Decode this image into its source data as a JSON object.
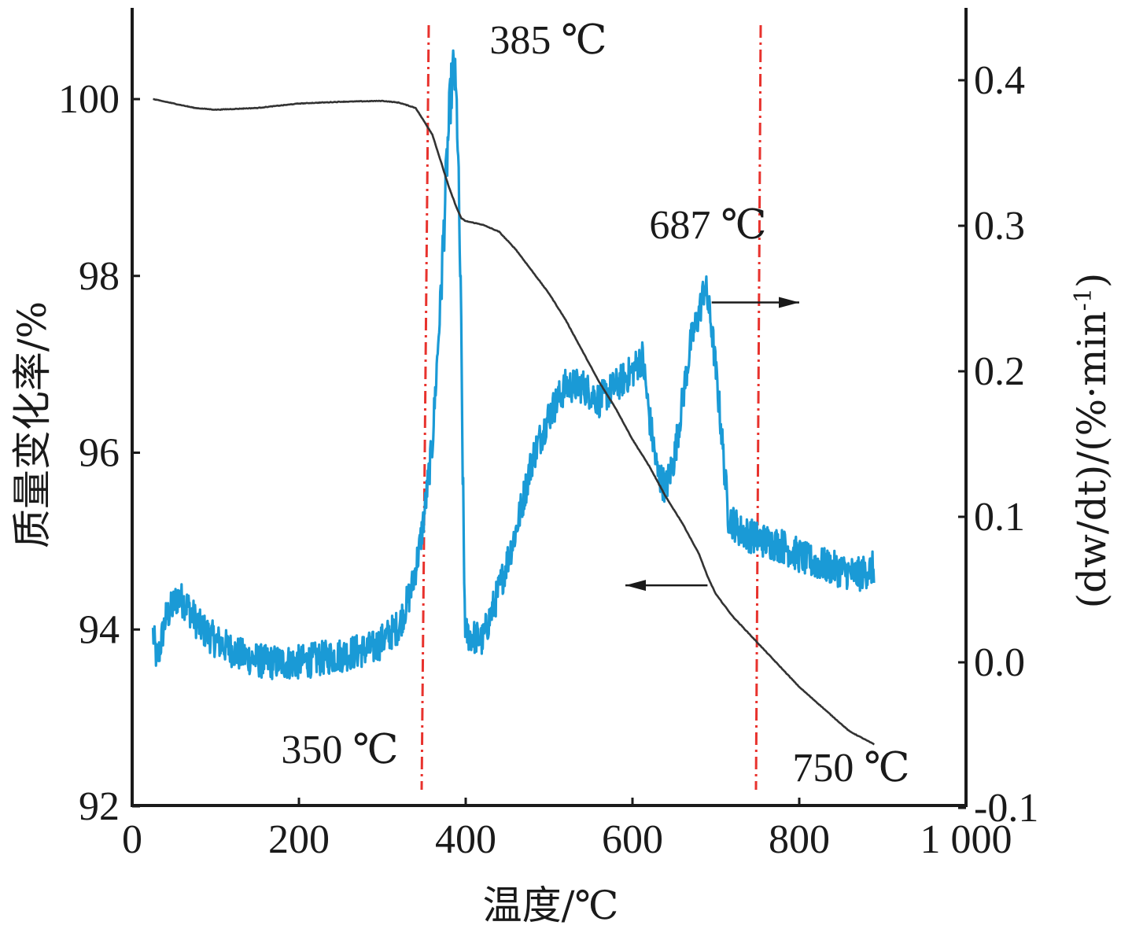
{
  "chart_data": {
    "type": "line",
    "xlabel": "温度/℃",
    "ylabel_left": "质量变化率/%",
    "ylabel_right": "(dw/dt)/(%·min",
    "ylabel_right_sup": "-1",
    "ylabel_right_close": ")",
    "xlim": [
      0,
      1000
    ],
    "ylim_left": [
      92,
      101
    ],
    "ylim_right": [
      -0.1,
      0.45
    ],
    "x_ticks": [
      0,
      200,
      400,
      600,
      800,
      1000
    ],
    "x_tick_labels": [
      "0",
      "200",
      "400",
      "600",
      "800",
      "1 000"
    ],
    "y_left_ticks": [
      92,
      94,
      96,
      98,
      100
    ],
    "y_left_tick_labels": [
      "92",
      "94",
      "96",
      "98",
      "100"
    ],
    "y_right_ticks": [
      -0.1,
      0.0,
      0.1,
      0.2,
      0.3,
      0.4
    ],
    "y_right_tick_labels": [
      "-0.1",
      "0.0",
      "0.1",
      "0.2",
      "0.3",
      "0.4"
    ],
    "grid": false,
    "colors": {
      "tg": "#333333",
      "dtg": "#1a9ad6",
      "markers": "#e8322d",
      "axes": "#1a1a1a"
    },
    "vertical_markers": [
      {
        "x": 350,
        "label": "350 ℃"
      },
      {
        "x": 750,
        "label": "750 ℃"
      }
    ],
    "peak_annotations": [
      {
        "x": 385,
        "label": "385 ℃"
      },
      {
        "x": 687,
        "label": "687 ℃"
      }
    ],
    "series": [
      {
        "axis": "left",
        "x": [
          25,
          50,
          75,
          100,
          150,
          200,
          250,
          300,
          320,
          340,
          360,
          370,
          380,
          390,
          395,
          400,
          420,
          440,
          460,
          480,
          500,
          520,
          540,
          560,
          580,
          600,
          620,
          640,
          660,
          680,
          690,
          700,
          720,
          750,
          780,
          800,
          830,
          860,
          890
        ],
        "values": [
          100.0,
          99.95,
          99.9,
          99.88,
          99.9,
          99.95,
          99.97,
          99.98,
          99.96,
          99.9,
          99.6,
          99.3,
          99.0,
          98.75,
          98.65,
          98.62,
          98.58,
          98.5,
          98.3,
          98.05,
          97.8,
          97.5,
          97.15,
          96.8,
          96.5,
          96.15,
          95.85,
          95.5,
          95.2,
          94.85,
          94.6,
          94.4,
          94.15,
          93.85,
          93.55,
          93.35,
          93.1,
          92.85,
          92.7
        ]
      },
      {
        "axis": "right",
        "x": [
          25,
          30,
          40,
          55,
          65,
          80,
          100,
          130,
          160,
          200,
          250,
          290,
          320,
          335,
          345,
          350,
          360,
          370,
          378,
          382,
          386,
          390,
          394,
          398,
          400,
          420,
          440,
          460,
          480,
          500,
          520,
          540,
          560,
          580,
          600,
          612,
          620,
          630,
          640,
          650,
          660,
          670,
          680,
          687,
          695,
          705,
          715,
          730,
          750,
          780,
          810,
          840,
          870,
          890
        ],
        "values": [
          0.02,
          0.0,
          0.03,
          0.045,
          0.04,
          0.025,
          0.015,
          0.005,
          0.0,
          0.0,
          0.005,
          0.01,
          0.025,
          0.05,
          0.08,
          0.1,
          0.15,
          0.25,
          0.35,
          0.39,
          0.41,
          0.37,
          0.25,
          0.06,
          0.02,
          0.015,
          0.05,
          0.09,
          0.14,
          0.17,
          0.19,
          0.19,
          0.18,
          0.19,
          0.2,
          0.21,
          0.17,
          0.13,
          0.12,
          0.14,
          0.18,
          0.22,
          0.24,
          0.26,
          0.23,
          0.17,
          0.1,
          0.09,
          0.085,
          0.08,
          0.07,
          0.065,
          0.06,
          0.065
        ]
      }
    ]
  }
}
